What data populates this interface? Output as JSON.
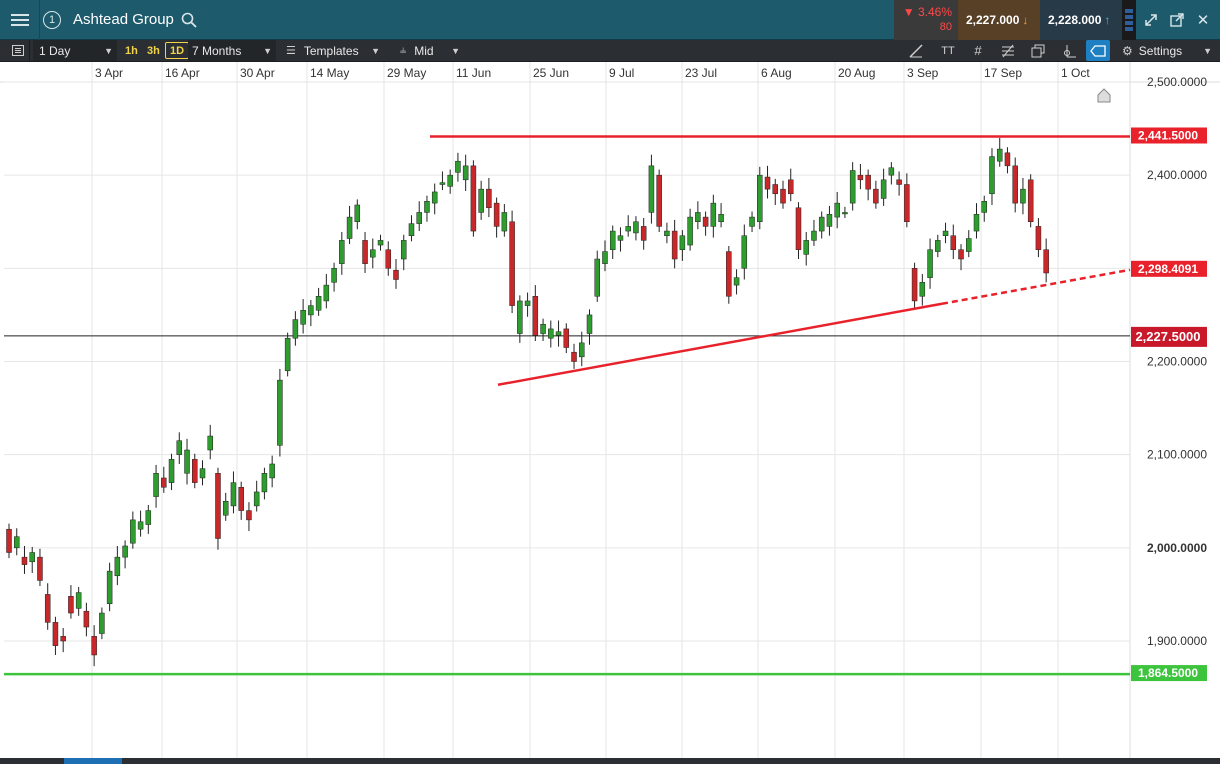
{
  "titlebar": {
    "title": "Ashtead Group",
    "instance_number": "1",
    "change_percent": "▼ 3.46%",
    "change_points": "80",
    "sell_price": "2,227.000",
    "buy_price": "2,228.000",
    "icons": [
      "menu-icon",
      "search-icon",
      "market-depth-icon",
      "expand-icon",
      "popout-icon",
      "close-icon"
    ]
  },
  "toolbar": {
    "interval": "1 Day",
    "timeframes": [
      "1h",
      "3h",
      "1D"
    ],
    "active_timeframe": "1D",
    "range": "7 Months",
    "templates_label": "Templates",
    "price_type": "Mid",
    "settings_label": "Settings",
    "text_tool_label": "TT",
    "colors": {
      "timeframe": "#f2d34a",
      "active_tool": "#1f7fc3"
    }
  },
  "chart_data": {
    "type": "candlestick",
    "instrument": "Ashtead Group",
    "x_dates": [
      "3 Apr",
      "16 Apr",
      "30 Apr",
      "14 May",
      "29 May",
      "11 Jun",
      "25 Jun",
      "9 Jul",
      "23 Jul",
      "6 Aug",
      "20 Aug",
      "3 Sep",
      "17 Sep",
      "1 Oct"
    ],
    "y_ticks": [
      "2,500.0000",
      "2,400.0000",
      "2,300.0000",
      "2,200.0000",
      "2,100.0000",
      "2,000.0000",
      "1,900.0000"
    ],
    "ylim": [
      1790,
      2510
    ],
    "grid": true,
    "price_labels": [
      {
        "label": "2,441.5000",
        "value": 2441.5,
        "color": "#e8212b"
      },
      {
        "label": "2,298.4091",
        "value": 2298.41,
        "color": "#e8212b"
      },
      {
        "label": "2,227.5000",
        "value": 2227.5,
        "color": "#c8182a"
      },
      {
        "label": "1,864.5000",
        "value": 1864.5,
        "color": "#3cc43c"
      }
    ],
    "lines": [
      {
        "type": "horizontal",
        "value": 2441.5,
        "from_index": 66,
        "to_index": 154,
        "color": "#e8212b"
      },
      {
        "type": "trend",
        "from": [
          79,
          2175
        ],
        "to": [
          139,
          2262
        ],
        "extend_to": [
          154,
          2298.4
        ],
        "color": "#e8212b"
      },
      {
        "type": "horizontal",
        "value": 2227.5,
        "color": "#222222"
      },
      {
        "type": "horizontal",
        "value": 1864.5,
        "color": "#3cc43c"
      }
    ],
    "candles": [
      [
        2020,
        1995
      ],
      [
        2000,
        2012
      ],
      [
        1990,
        1982
      ],
      [
        1985,
        1995
      ],
      [
        1990,
        1965
      ],
      [
        1950,
        1920
      ],
      [
        1920,
        1895
      ],
      [
        1905,
        1900
      ],
      [
        1948,
        1930
      ],
      [
        1935,
        1952
      ],
      [
        1932,
        1915
      ],
      [
        1905,
        1885
      ],
      [
        1908,
        1930
      ],
      [
        1940,
        1975
      ],
      [
        1970,
        1990
      ],
      [
        1990,
        2002
      ],
      [
        2005,
        2030
      ],
      [
        2020,
        2028
      ],
      [
        2025,
        2040
      ],
      [
        2055,
        2080
      ],
      [
        2075,
        2065
      ],
      [
        2070,
        2095
      ],
      [
        2100,
        2115
      ],
      [
        2080,
        2105
      ],
      [
        2095,
        2070
      ],
      [
        2075,
        2085
      ],
      [
        2105,
        2120
      ],
      [
        2080,
        2010
      ],
      [
        2035,
        2050
      ],
      [
        2045,
        2070
      ],
      [
        2065,
        2040
      ],
      [
        2040,
        2030
      ],
      [
        2045,
        2060
      ],
      [
        2060,
        2080
      ],
      [
        2075,
        2090
      ],
      [
        2110,
        2180
      ],
      [
        2190,
        2225
      ],
      [
        2225,
        2245
      ],
      [
        2240,
        2255
      ],
      [
        2250,
        2260
      ],
      [
        2255,
        2270
      ],
      [
        2265,
        2282
      ],
      [
        2285,
        2300
      ],
      [
        2305,
        2330
      ],
      [
        2332,
        2355
      ],
      [
        2350,
        2368
      ],
      [
        2330,
        2305
      ],
      [
        2312,
        2320
      ],
      [
        2325,
        2330
      ],
      [
        2320,
        2300
      ],
      [
        2298,
        2288
      ],
      [
        2310,
        2330
      ],
      [
        2335,
        2348
      ],
      [
        2348,
        2360
      ],
      [
        2360,
        2372
      ],
      [
        2370,
        2382
      ],
      [
        2390,
        2392
      ],
      [
        2388,
        2400
      ],
      [
        2403,
        2415
      ],
      [
        2395,
        2410
      ],
      [
        2410,
        2340
      ],
      [
        2360,
        2385
      ],
      [
        2385,
        2365
      ],
      [
        2370,
        2345
      ],
      [
        2340,
        2360
      ],
      [
        2350,
        2260
      ],
      [
        2230,
        2265
      ],
      [
        2260,
        2265
      ],
      [
        2270,
        2228
      ],
      [
        2230,
        2240
      ],
      [
        2225,
        2235
      ],
      [
        2228,
        2232
      ],
      [
        2235,
        2215
      ],
      [
        2210,
        2200
      ],
      [
        2205,
        2220
      ],
      [
        2230,
        2250
      ],
      [
        2270,
        2310
      ],
      [
        2305,
        2318
      ],
      [
        2320,
        2340
      ],
      [
        2330,
        2335
      ],
      [
        2340,
        2345
      ],
      [
        2338,
        2350
      ],
      [
        2345,
        2330
      ],
      [
        2360,
        2410
      ],
      [
        2400,
        2345
      ],
      [
        2335,
        2340
      ],
      [
        2340,
        2310
      ],
      [
        2320,
        2335
      ],
      [
        2325,
        2355
      ],
      [
        2350,
        2360
      ],
      [
        2355,
        2345
      ],
      [
        2345,
        2370
      ],
      [
        2350,
        2358
      ],
      [
        2318,
        2270
      ],
      [
        2282,
        2290
      ],
      [
        2300,
        2335
      ],
      [
        2345,
        2355
      ],
      [
        2350,
        2400
      ],
      [
        2398,
        2385
      ],
      [
        2390,
        2380
      ],
      [
        2385,
        2370
      ],
      [
        2395,
        2380
      ],
      [
        2365,
        2320
      ],
      [
        2315,
        2330
      ],
      [
        2330,
        2340
      ],
      [
        2340,
        2355
      ],
      [
        2345,
        2358
      ],
      [
        2355,
        2370
      ],
      [
        2360,
        2360
      ],
      [
        2370,
        2405
      ],
      [
        2400,
        2395
      ],
      [
        2400,
        2385
      ],
      [
        2385,
        2370
      ],
      [
        2375,
        2395
      ],
      [
        2400,
        2408
      ],
      [
        2395,
        2390
      ],
      [
        2390,
        2350
      ],
      [
        2300,
        2265
      ],
      [
        2270,
        2285
      ],
      [
        2290,
        2320
      ],
      [
        2318,
        2330
      ],
      [
        2335,
        2340
      ],
      [
        2335,
        2320
      ],
      [
        2320,
        2310
      ],
      [
        2318,
        2332
      ],
      [
        2340,
        2358
      ],
      [
        2360,
        2372
      ],
      [
        2380,
        2420
      ],
      [
        2415,
        2428
      ],
      [
        2424,
        2410
      ],
      [
        2410,
        2370
      ],
      [
        2370,
        2385
      ],
      [
        2395,
        2350
      ],
      [
        2345,
        2320
      ],
      [
        2320,
        2295
      ]
    ],
    "candle_colors": {
      "up": "#2e9c2e",
      "down": "#c8282a",
      "wick": "#222222"
    }
  }
}
